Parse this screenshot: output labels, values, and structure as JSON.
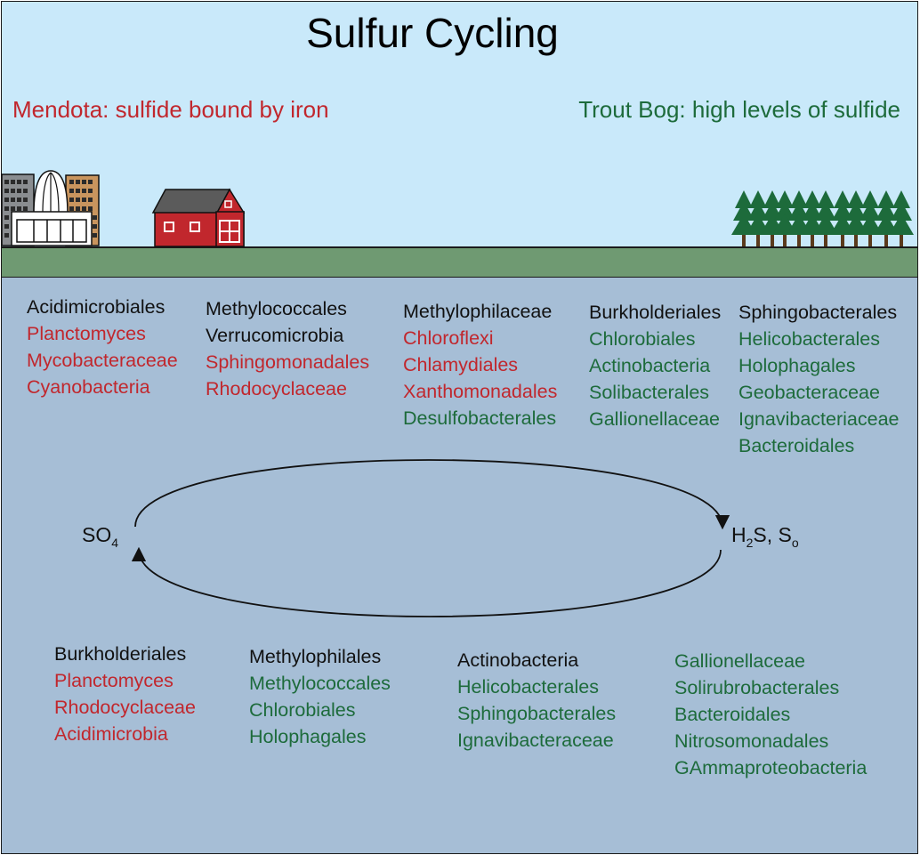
{
  "title": "Sulfur Cycling",
  "lakes": {
    "mendota": {
      "label": "Mendota: sulfide bound by iron",
      "color": "#c1272d"
    },
    "trout_bog": {
      "label": "Trout Bog: high levels of sulfide",
      "color": "#1d6b3b"
    }
  },
  "colors": {
    "sky": "#c9e9fa",
    "ground": "#6f9a72",
    "water": "#a6bed6",
    "house": "#c1272d",
    "trees": "#1d6b3b"
  },
  "cycle": {
    "left": {
      "base": "SO",
      "sub1": "4"
    },
    "right": {
      "p1": "H",
      "sub1": "2",
      "p2": "S, S",
      "sub2": "o"
    }
  },
  "top_groups": [
    {
      "items": [
        {
          "name": "Acidimicrobiales",
          "lake": "shared"
        },
        {
          "name": "Planctomyces",
          "lake": "mendota"
        },
        {
          "name": "Mycobacteraceae",
          "lake": "mendota"
        },
        {
          "name": "Cyanobacteria",
          "lake": "mendota"
        }
      ]
    },
    {
      "items": [
        {
          "name": "Methylococcales",
          "lake": "shared"
        },
        {
          "name": "Verrucomicrobia",
          "lake": "shared"
        },
        {
          "name": "Sphingomonadales",
          "lake": "mendota"
        },
        {
          "name": "Rhodocyclaceae",
          "lake": "mendota"
        }
      ]
    },
    {
      "items": [
        {
          "name": "Methylophilaceae",
          "lake": "shared"
        },
        {
          "name": "Chloroflexi",
          "lake": "mendota"
        },
        {
          "name": "Chlamydiales",
          "lake": "mendota"
        },
        {
          "name": "Xanthomonadales",
          "lake": "mendota"
        },
        {
          "name": "Desulfobacterales",
          "lake": "trout_bog"
        }
      ]
    },
    {
      "items": [
        {
          "name": "Burkholderiales",
          "lake": "shared"
        },
        {
          "name": "Chlorobiales",
          "lake": "trout_bog"
        },
        {
          "name": "Actinobacteria",
          "lake": "trout_bog"
        },
        {
          "name": "Solibacterales",
          "lake": "trout_bog"
        },
        {
          "name": "Gallionellaceae",
          "lake": "trout_bog"
        }
      ]
    },
    {
      "items": [
        {
          "name": "Sphingobacterales",
          "lake": "shared"
        },
        {
          "name": "Helicobacterales",
          "lake": "trout_bog"
        },
        {
          "name": "Holophagales",
          "lake": "trout_bog"
        },
        {
          "name": "Geobacteraceae",
          "lake": "trout_bog"
        },
        {
          "name": "Ignavibacteriaceae",
          "lake": "trout_bog"
        },
        {
          "name": "Bacteroidales",
          "lake": "trout_bog"
        }
      ]
    }
  ],
  "bottom_groups": [
    {
      "items": [
        {
          "name": "Burkholderiales",
          "lake": "shared"
        },
        {
          "name": "Planctomyces",
          "lake": "mendota"
        },
        {
          "name": "Rhodocyclaceae",
          "lake": "mendota"
        },
        {
          "name": "Acidimicrobia",
          "lake": "mendota"
        }
      ]
    },
    {
      "items": [
        {
          "name": "Methylophilales",
          "lake": "shared"
        },
        {
          "name": "Methylococcales",
          "lake": "trout_bog"
        },
        {
          "name": "Chlorobiales",
          "lake": "trout_bog"
        },
        {
          "name": "Holophagales",
          "lake": "trout_bog"
        }
      ]
    },
    {
      "items": [
        {
          "name": "Actinobacteria",
          "lake": "shared"
        },
        {
          "name": "Helicobacterales",
          "lake": "trout_bog"
        },
        {
          "name": "Sphingobacterales",
          "lake": "trout_bog"
        },
        {
          "name": "Ignavibacteraceae",
          "lake": "trout_bog"
        }
      ]
    },
    {
      "items": [
        {
          "name": "Gallionellaceae",
          "lake": "trout_bog"
        },
        {
          "name": "Solirubrobacterales",
          "lake": "trout_bog"
        },
        {
          "name": "Bacteroidales",
          "lake": "trout_bog"
        },
        {
          "name": "Nitrosomonadales",
          "lake": "trout_bog"
        },
        {
          "name": "GAmmaproteobacteria",
          "lake": "trout_bog"
        }
      ]
    }
  ]
}
